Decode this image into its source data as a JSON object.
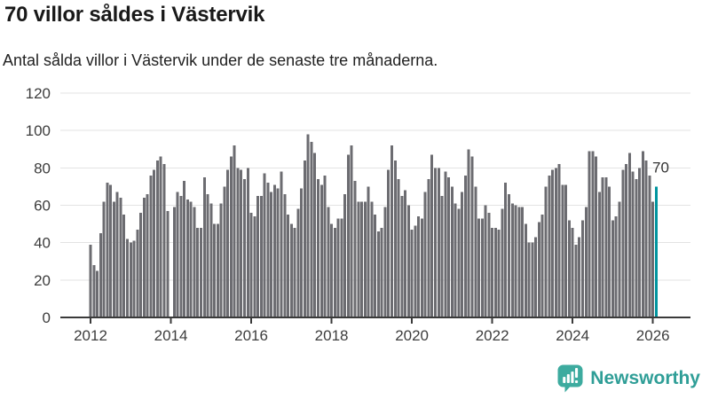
{
  "header": {
    "title": "70 villor såldes i Västervik",
    "subtitle": "Antal sålda villor i Västervik under de senaste tre månaderna."
  },
  "chart_data": {
    "type": "bar",
    "title": "70 villor såldes i Västervik",
    "subtitle": "Antal sålda villor i Västervik under de senaste tre månaderna.",
    "x_unit": "month",
    "x_start": "2012-01",
    "x_end": "2026-02",
    "x_tick_labels": [
      "2012",
      "2014",
      "2016",
      "2018",
      "2020",
      "2022",
      "2024",
      "2026"
    ],
    "y_ticks": [
      0,
      20,
      40,
      60,
      80,
      100,
      120
    ],
    "ylim": [
      0,
      120
    ],
    "grid": true,
    "legend": false,
    "xlabel": "",
    "ylabel": "",
    "highlight_label": "70",
    "highlight_value": 70,
    "highlight_position": "last-bar",
    "colors": {
      "bar": "#6c6c71",
      "highlight": "#00959f",
      "axis": "#3a3a3a",
      "grid": "#e3e3e3",
      "tick_label": "#3d3d3d",
      "annotation": "#333333"
    },
    "values": [
      39,
      28,
      25,
      45,
      62,
      72,
      71,
      62,
      67,
      64,
      55,
      42,
      40,
      41,
      47,
      56,
      64,
      66,
      76,
      79,
      84,
      86,
      82,
      57,
      null,
      59,
      67,
      65,
      73,
      63,
      62,
      59,
      48,
      48,
      75,
      66,
      61,
      50,
      50,
      61,
      70,
      79,
      86,
      92,
      80,
      79,
      74,
      80,
      56,
      54,
      65,
      65,
      77,
      72,
      67,
      71,
      69,
      78,
      66,
      55,
      50,
      48,
      58,
      69,
      84,
      98,
      94,
      88,
      74,
      71,
      76,
      59,
      50,
      48,
      53,
      53,
      66,
      87,
      92,
      73,
      62,
      62,
      62,
      70,
      62,
      55,
      46,
      48,
      59,
      79,
      92,
      84,
      74,
      65,
      68,
      60,
      47,
      49,
      54,
      53,
      67,
      74,
      87,
      80,
      80,
      65,
      78,
      75,
      70,
      61,
      58,
      67,
      76,
      90,
      86,
      70,
      53,
      53,
      60,
      56,
      48,
      48,
      47,
      58,
      72,
      66,
      61,
      60,
      59,
      59,
      50,
      40,
      40,
      43,
      51,
      55,
      70,
      76,
      79,
      80,
      82,
      71,
      71,
      52,
      48,
      39,
      43,
      52,
      59,
      89,
      89,
      86,
      67,
      75,
      75,
      70,
      52,
      54,
      62,
      79,
      82,
      88,
      78,
      74,
      80,
      89,
      84,
      76,
      62,
      70
    ]
  },
  "footer": {
    "brand": "Newsworthy",
    "brand_color": "#2f9e97",
    "icon_color": "#3dab9f"
  }
}
